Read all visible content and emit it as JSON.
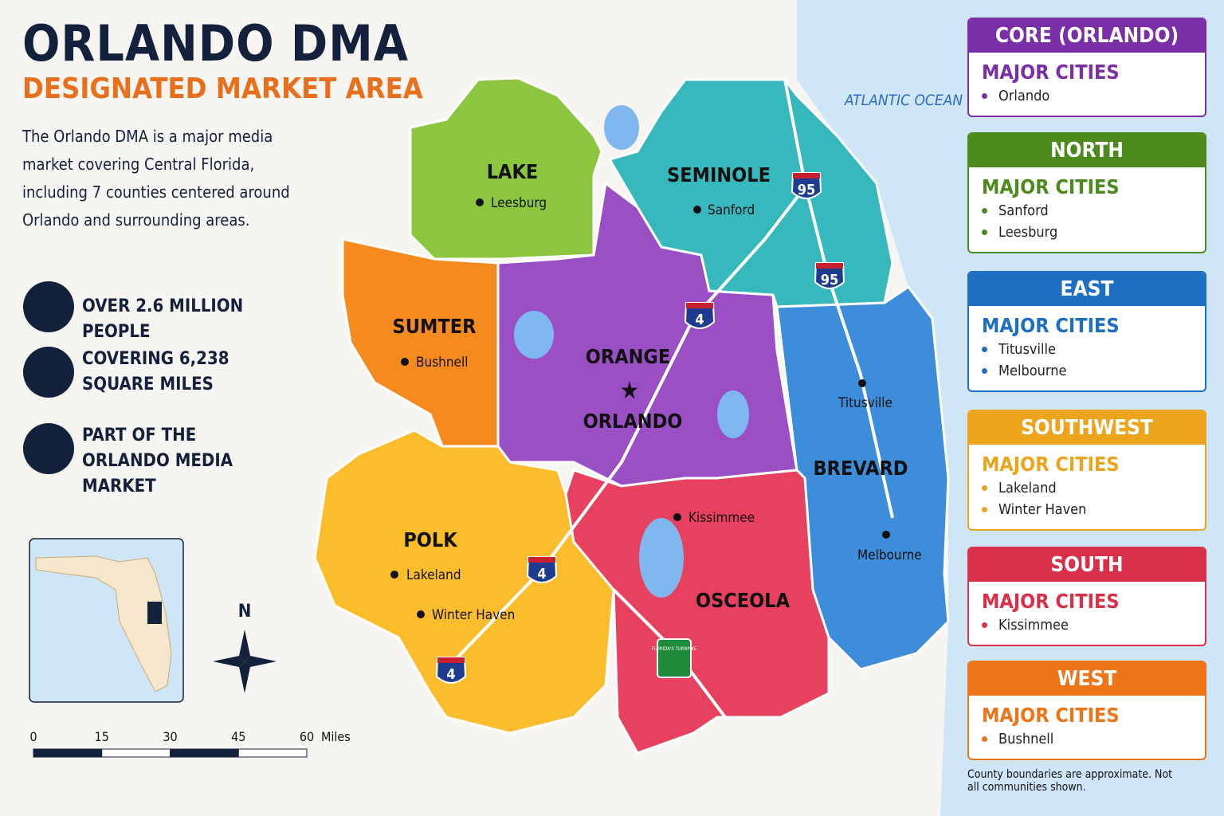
{
  "header": {
    "title": "ORLANDO DMA",
    "subtitle": "DESIGNATED MARKET AREA",
    "description": "The Orlando DMA is a major media market covering Central Florida, including 7 counties centered around Orlando and surrounding areas."
  },
  "stats": [
    "OVER 2.6 MILLION PEOPLE",
    "COVERING 6,238 SQUARE MILES",
    "PART OF THE ORLANDO MEDIA MARKET"
  ],
  "map": {
    "ocean": "ATLANTIC OCEAN",
    "counties": [
      {
        "name": "LAKE",
        "color": "#8cc63e"
      },
      {
        "name": "SUMTER",
        "color": "#f58a1f"
      },
      {
        "name": "ORANGE",
        "color": "#9b4fc4"
      },
      {
        "name": "SEMINOLE",
        "color": "#36b8bd"
      },
      {
        "name": "BREVARD",
        "color": "#3d8ddb"
      },
      {
        "name": "POLK",
        "color": "#fbbd2c"
      },
      {
        "name": "OSCEOLA",
        "color": "#e8405f"
      }
    ],
    "cities": [
      "Leesburg",
      "Sanford",
      "Bushnell",
      "ORLANDO",
      "Titusville",
      "Melbourne",
      "Kissimmee",
      "Lakeland",
      "Winter Haven"
    ],
    "highways": [
      "95",
      "95",
      "4",
      "4",
      "4"
    ],
    "turnpike": "FLORIDA'S TURNPIKE",
    "compass": "N",
    "scale": {
      "ticks": [
        0,
        15,
        30,
        45,
        60
      ],
      "unit": "Miles"
    }
  },
  "regions": [
    {
      "title": "CORE (ORLANDO)",
      "heading": "MAJOR CITIES",
      "cities": [
        "Orlando"
      ],
      "color": "#7b2fa6"
    },
    {
      "title": "NORTH",
      "heading": "MAJOR CITIES",
      "cities": [
        "Sanford",
        "Leesburg"
      ],
      "color": "#4c8a1e"
    },
    {
      "title": "EAST",
      "heading": "MAJOR CITIES",
      "cities": [
        "Titusville",
        "Melbourne"
      ],
      "color": "#1d6fc4"
    },
    {
      "title": "SOUTHWEST",
      "heading": "MAJOR CITIES",
      "cities": [
        "Lakeland",
        "Winter Haven"
      ],
      "color": "#eca41c"
    },
    {
      "title": "SOUTH",
      "heading": "MAJOR CITIES",
      "cities": [
        "Kissimmee"
      ],
      "color": "#d9304a"
    },
    {
      "title": "WEST",
      "heading": "MAJOR CITIES",
      "cities": [
        "Bushnell"
      ],
      "color": "#ee7418"
    }
  ],
  "footnote": "County boundaries are approximate. Not all communities shown."
}
